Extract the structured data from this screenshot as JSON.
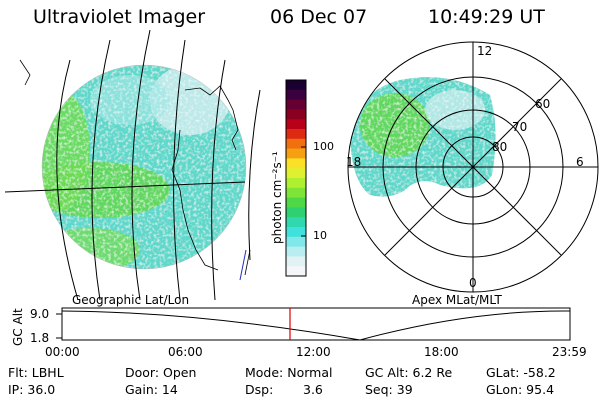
{
  "header": {
    "instrument": "Ultraviolet Imager",
    "date": "06 Dec 07",
    "time": "10:49:29 UT"
  },
  "colorbar": {
    "unit_label": "photon cm⁻²s⁻¹",
    "tick_labels": [
      "100",
      "10"
    ],
    "colors": [
      "#1a0030",
      "#3a0040",
      "#660033",
      "#8a0020",
      "#b80018",
      "#dd2a10",
      "#f07010",
      "#f4a010",
      "#fbe028",
      "#dff030",
      "#b0ee30",
      "#7ee438",
      "#4fd845",
      "#2fd070",
      "#30d8b0",
      "#40e0dd",
      "#80e8ea",
      "#b8eef0",
      "#e0f2f4",
      "#f4f6f8"
    ]
  },
  "maps": {
    "left_caption": "Geographic Lat/Lon",
    "right_caption": "Apex MLat/MLT",
    "polar_lat_labels": [
      "60",
      "70",
      "80"
    ],
    "polar_mlt_labels": [
      "12",
      "18",
      "6",
      "0"
    ]
  },
  "altitude_panel": {
    "axis_label": "GC Alt",
    "y_tick_labels": [
      "9.0",
      "1.8"
    ],
    "x_tick_labels": [
      "00:00",
      "06:00",
      "12:00",
      "18:00",
      "23:59"
    ],
    "marker_color": "#dd0000"
  },
  "info": {
    "flt": "Flt: LBHL",
    "ip": "IP: 36.0",
    "door": "Door: Open",
    "gain": "Gain: 14",
    "mode": "Mode: Normal",
    "dsp_label": "Dsp:",
    "dsp_value": "3.6",
    "gc_alt": "GC Alt: 6.2 Re",
    "seq": "Seq: 39",
    "glat": "GLat: -58.2",
    "glon": "GLon: 95.4"
  }
}
